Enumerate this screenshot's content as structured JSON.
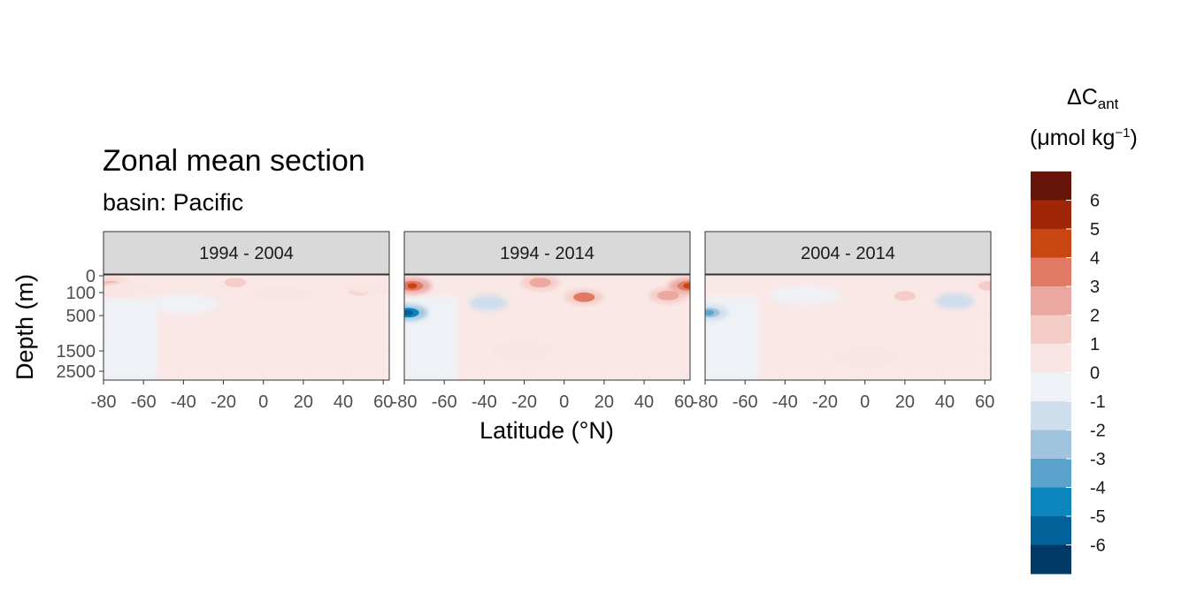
{
  "chart_data": {
    "type": "heatmap",
    "title": "Zonal mean section",
    "subtitle": "basin: Pacific",
    "xlabel": "Latitude (°N)",
    "ylabel": "Depth (m)",
    "x_ticks": [
      "-80",
      "-60",
      "-40",
      "-20",
      "0",
      "20",
      "40",
      "60"
    ],
    "y_ticks": [
      "0",
      "100",
      "500",
      "1500",
      "2500"
    ],
    "xlim": [
      -80,
      63
    ],
    "ylim": [
      3000,
      0
    ],
    "panels": [
      {
        "label": "1994 - 2004",
        "features": [
          {
            "lat": -76,
            "depth": 60,
            "value": 4
          },
          {
            "lat": -68,
            "depth": 80,
            "value": 1
          },
          {
            "lat": -40,
            "depth": 300,
            "value": -1
          },
          {
            "lat": -14,
            "depth": 40,
            "value": 2
          },
          {
            "lat": 10,
            "depth": 120,
            "value": 1
          },
          {
            "lat": 48,
            "depth": 90,
            "value": 2
          },
          {
            "lat": 58,
            "depth": 60,
            "value": 1
          },
          {
            "lat": -72,
            "depth": 1800,
            "value": -0.5
          }
        ]
      },
      {
        "label": "1994 - 2014",
        "features": [
          {
            "lat": -76,
            "depth": 60,
            "value": 5
          },
          {
            "lat": -78,
            "depth": 450,
            "value": -5
          },
          {
            "lat": -38,
            "depth": 280,
            "value": -2
          },
          {
            "lat": -12,
            "depth": 40,
            "value": 3
          },
          {
            "lat": 10,
            "depth": 180,
            "value": 4
          },
          {
            "lat": 52,
            "depth": 150,
            "value": 3
          },
          {
            "lat": 62,
            "depth": 60,
            "value": 5
          },
          {
            "lat": -20,
            "depth": 1500,
            "value": 1
          }
        ]
      },
      {
        "label": "2004 - 2014",
        "features": [
          {
            "lat": -78,
            "depth": 450,
            "value": -3
          },
          {
            "lat": -30,
            "depth": 150,
            "value": -1
          },
          {
            "lat": 20,
            "depth": 160,
            "value": 2
          },
          {
            "lat": 45,
            "depth": 250,
            "value": -2
          },
          {
            "lat": 62,
            "depth": 60,
            "value": 2
          },
          {
            "lat": 0,
            "depth": 1800,
            "value": 1
          }
        ]
      }
    ],
    "legend": {
      "title": "ΔC",
      "title_sub": "ant",
      "unit_text": "(μmol kg",
      "unit_sup": "−1",
      "unit_close": ")",
      "position": "right",
      "labels": [
        "6",
        "5",
        "4",
        "3",
        "2",
        "1",
        "0",
        "-1",
        "-2",
        "-3",
        "-4",
        "-5",
        "-6"
      ],
      "colors": [
        "#67140a",
        "#9f2607",
        "#c94511",
        "#e07a65",
        "#eba8a0",
        "#f4cdc8",
        "#f9e6e4",
        "#eef2f7",
        "#cfdeec",
        "#a0c4de",
        "#5aa3cc",
        "#0b86bd",
        "#026198",
        "#013a67"
      ]
    }
  },
  "colors": {
    "strip_fill": "#d9d9d9",
    "strip_border": "#333333",
    "panel_border": "#333333",
    "grid": "#ebebeb",
    "axis_text": "#4d4d4d"
  }
}
